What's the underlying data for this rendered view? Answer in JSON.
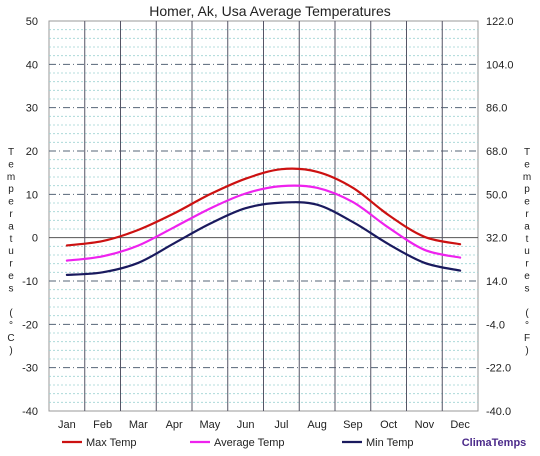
{
  "chart_data": {
    "type": "line",
    "title": "Homer, Ak, Usa Average Temperatures",
    "categories": [
      "Jan",
      "Feb",
      "Mar",
      "Apr",
      "May",
      "Jun",
      "Jul",
      "Aug",
      "Sep",
      "Oct",
      "Nov",
      "Dec"
    ],
    "ylabel_left": "Temperatures (°C)",
    "ylabel_right": "Temperatures (°F)",
    "ylim": [
      -40,
      50
    ],
    "yticks_left": [
      "50",
      "40",
      "30",
      "20",
      "10",
      "0",
      "-10",
      "-20",
      "-30",
      "-40"
    ],
    "yticks_right": [
      "122.0",
      "104.0",
      "86.0",
      "68.0",
      "50.0",
      "32.0",
      "14.0",
      "-4.0",
      "-22.0",
      "-40.0"
    ],
    "grid": true,
    "legend_position": "bottom",
    "series": [
      {
        "name": "Max Temp",
        "color": "#cc1111",
        "values": [
          -1.8,
          -0.8,
          1.8,
          5.6,
          10.0,
          13.6,
          15.8,
          15.2,
          11.5,
          5.2,
          0.2,
          -1.5
        ]
      },
      {
        "name": "Average Temp",
        "color": "#ee22ee",
        "values": [
          -5.3,
          -4.3,
          -1.8,
          2.4,
          6.7,
          10.2,
          11.9,
          11.5,
          8.2,
          2.3,
          -2.8,
          -4.6
        ]
      },
      {
        "name": "Min Temp",
        "color": "#1a1a5e",
        "values": [
          -8.6,
          -8.0,
          -5.8,
          -1.3,
          3.2,
          6.8,
          8.1,
          7.6,
          3.6,
          -1.5,
          -5.8,
          -7.6
        ]
      }
    ]
  },
  "brand": "ClimaTemps"
}
